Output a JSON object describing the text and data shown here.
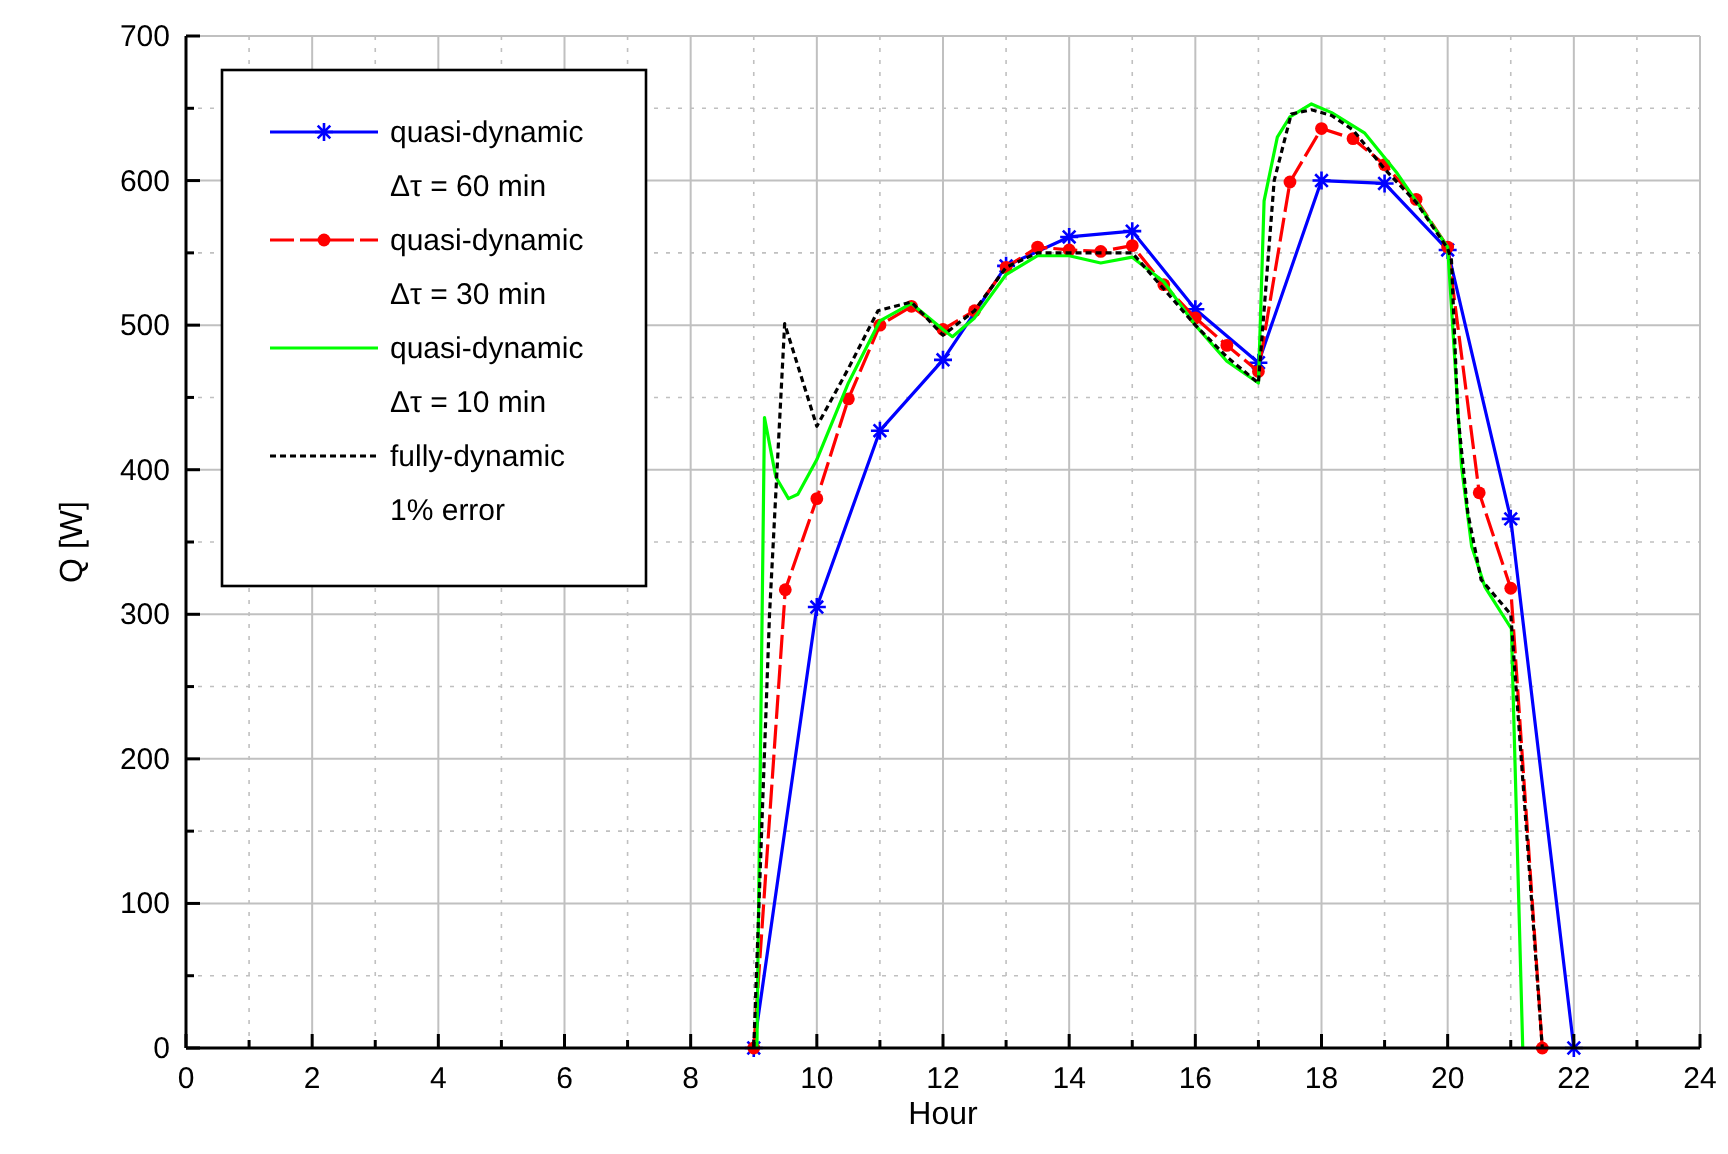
{
  "chart_data": {
    "type": "line",
    "xlabel": "Hour",
    "ylabel": "Q [W]",
    "xlim": [
      0,
      24
    ],
    "ylim": [
      0,
      700
    ],
    "xticks": [
      0,
      {
        "value": 1,
        "label": null
      },
      2,
      {
        "value": 3,
        "label": null
      },
      4,
      {
        "value": 5,
        "label": null
      },
      6,
      {
        "value": 7,
        "label": null
      },
      8,
      {
        "value": 9,
        "label": null
      },
      10,
      {
        "value": 11,
        "label": null
      },
      12,
      {
        "value": 13,
        "label": null
      },
      14,
      {
        "value": 15,
        "label": null
      },
      16,
      {
        "value": 17,
        "label": null
      },
      18,
      {
        "value": 19,
        "label": null
      },
      20,
      {
        "value": 21,
        "label": null
      },
      22,
      {
        "value": 23,
        "label": null
      },
      24
    ],
    "yticks": [
      0,
      {
        "value": 50,
        "label": null
      },
      100,
      {
        "value": 150,
        "label": null
      },
      200,
      {
        "value": 250,
        "label": null
      },
      300,
      {
        "value": 350,
        "label": null
      },
      400,
      {
        "value": 450,
        "label": null
      },
      500,
      {
        "value": 550,
        "label": null
      },
      600,
      {
        "value": 650,
        "label": null
      },
      700
    ],
    "grid": true,
    "legend": "top left",
    "series": [
      {
        "name": "quasi-dynamic\nΔτ = 60 min",
        "color": "#0000ff",
        "marker": "cross",
        "line_style": "solid",
        "x": [
          9,
          10,
          11,
          12,
          13,
          14,
          15,
          16,
          17,
          18,
          19,
          20,
          21,
          22
        ],
        "values": [
          0,
          305,
          427,
          476,
          541,
          561,
          565,
          511,
          474,
          600,
          598,
          552,
          366,
          0
        ]
      },
      {
        "name": "quasi-dynamic\nΔτ = 30 min",
        "color": "#ff0000",
        "marker": "circle",
        "line_style": "dashed",
        "x": [
          9,
          9.5,
          10,
          10.5,
          11,
          11.5,
          12,
          12.5,
          13,
          13.5,
          14,
          14.5,
          15,
          15.5,
          16,
          16.5,
          17,
          17.5,
          18,
          18.5,
          19,
          19.5,
          20,
          20.5,
          21,
          21.5
        ],
        "values": [
          0,
          317,
          380,
          449,
          500,
          513,
          497,
          510,
          540,
          554,
          552,
          551,
          555,
          528,
          505,
          486,
          468,
          599,
          636,
          629,
          611,
          587,
          554,
          384,
          318,
          0
        ]
      },
      {
        "name": "quasi-dynamic\nΔτ = 10 min",
        "color": "#00ff00",
        "marker": "none",
        "line_style": "solid",
        "x": [
          9.05,
          9.17,
          9.35,
          9.55,
          9.7,
          10,
          10.5,
          11,
          11.5,
          12,
          12.15,
          12.5,
          13,
          13.5,
          14,
          14.5,
          15,
          15.5,
          16,
          16.5,
          17,
          17.09,
          17.3,
          17.5,
          17.84,
          18.16,
          18.68,
          19.2,
          20,
          20.1,
          20.22,
          20.38,
          20.59,
          21.01,
          21.19
        ],
        "values": [
          0,
          436,
          395,
          380,
          383,
          407,
          460,
          503,
          515,
          497,
          492,
          505,
          535,
          548,
          548,
          543,
          547,
          530,
          500,
          475,
          460,
          586,
          630,
          644,
          653,
          647,
          633,
          605,
          554,
          485,
          402,
          347,
          319,
          290,
          0
        ]
      },
      {
        "name": "fully-dynamic\n1% error",
        "color": "#000000",
        "marker": "none",
        "line_style": "dotted",
        "x": [
          9,
          9.25,
          9.49,
          10,
          10.5,
          10.97,
          11.5,
          12,
          12.5,
          13,
          13.5,
          14,
          14.5,
          15,
          15.5,
          16,
          16.5,
          17,
          17.25,
          17.52,
          17.84,
          18.16,
          18.5,
          19,
          19.5,
          20,
          20.06,
          20.16,
          20.32,
          20.53,
          21,
          21.5
        ],
        "values": [
          0,
          300,
          501,
          430,
          470,
          510,
          516,
          493,
          510,
          540,
          550,
          550,
          550,
          550,
          525,
          500,
          478,
          460,
          600,
          646,
          649,
          645,
          635,
          608,
          585,
          553,
          545,
          439,
          370,
          324,
          300,
          0
        ]
      }
    ]
  }
}
